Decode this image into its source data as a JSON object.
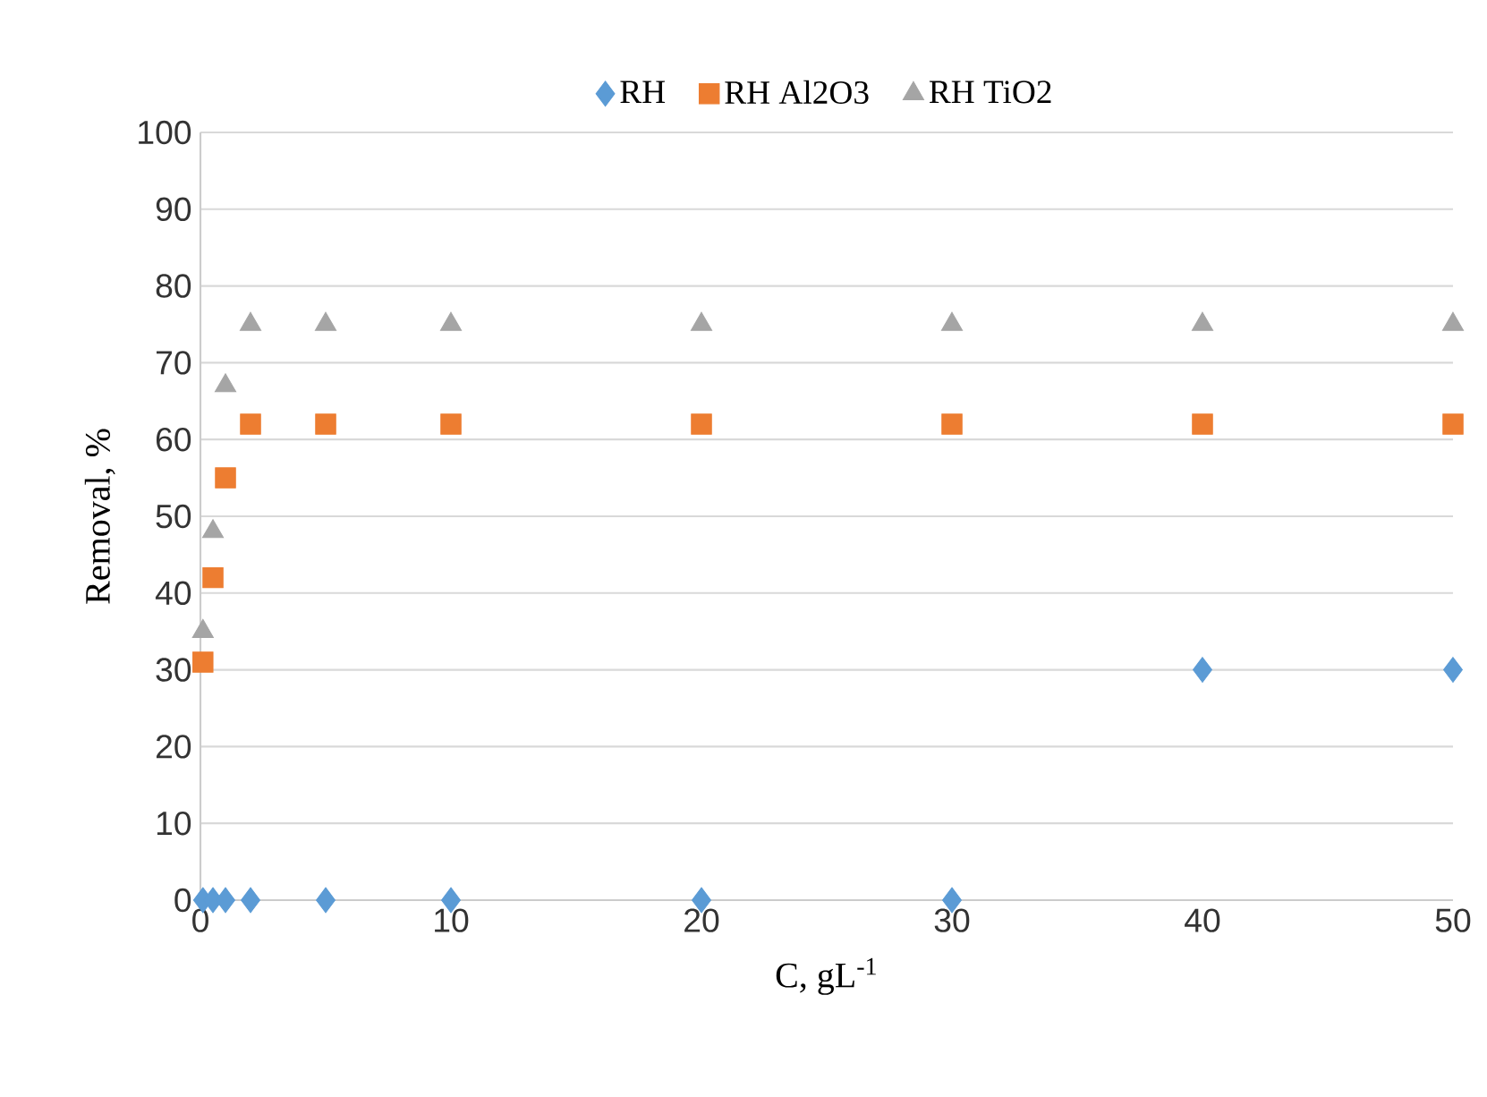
{
  "chart_data": {
    "type": "scatter",
    "xlabel": "C, gL$^{-1}$",
    "ylabel": "Removal, %",
    "xlim": [
      0,
      50
    ],
    "xticks": [
      0,
      10,
      20,
      30,
      40,
      50
    ],
    "ylim": [
      0,
      100
    ],
    "yticks": [
      0,
      10,
      20,
      30,
      40,
      50,
      60,
      70,
      80,
      90,
      100
    ],
    "grid": "y",
    "legend": "top",
    "series": [
      {
        "name": "RH",
        "color": "#5b9bd5",
        "marker": "diamond",
        "x": [
          0.1,
          0.5,
          1,
          2,
          5,
          10,
          20,
          30,
          40,
          50
        ],
        "values": [
          0,
          0,
          0,
          0,
          0,
          0,
          0,
          0,
          30,
          30
        ]
      },
      {
        "name": "RH Al2O3",
        "color": "#ed7d31",
        "marker": "square",
        "x": [
          0.1,
          0.5,
          1,
          2,
          5,
          10,
          20,
          30,
          40,
          50
        ],
        "values": [
          31,
          42,
          55,
          62,
          62,
          62,
          62,
          62,
          62,
          62
        ]
      },
      {
        "name": "RH TiO2",
        "color": "#a5a5a5",
        "marker": "triangle",
        "x": [
          0.1,
          0.5,
          1,
          2,
          5,
          10,
          20,
          30,
          40,
          50
        ],
        "values": [
          35,
          48,
          67,
          75,
          75,
          75,
          75,
          75,
          75,
          75
        ]
      }
    ]
  }
}
